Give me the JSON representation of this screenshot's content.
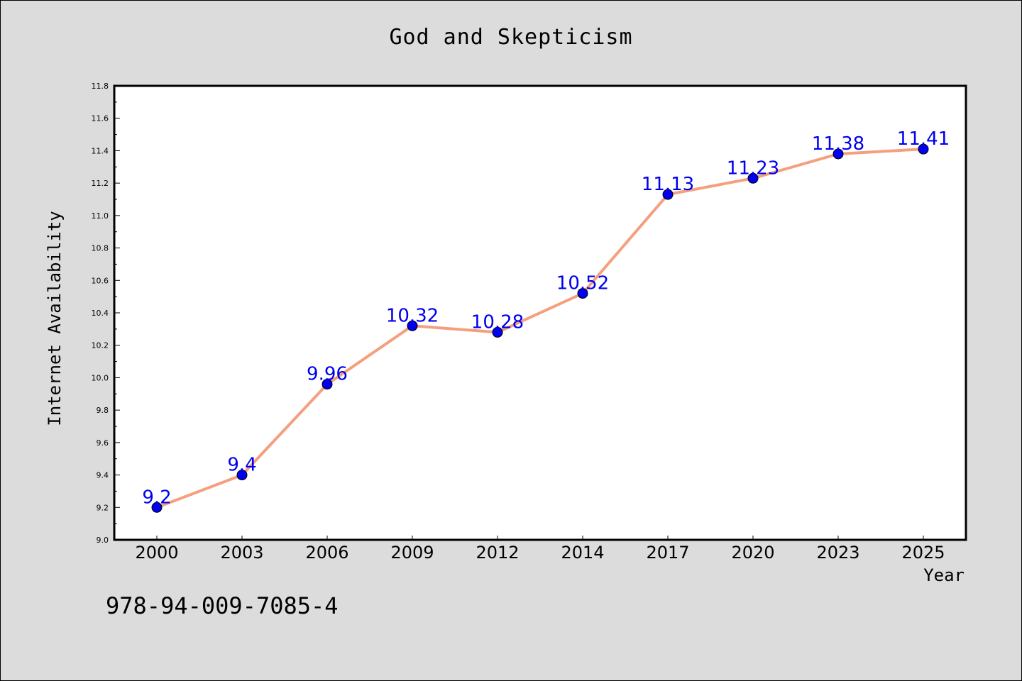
{
  "chart_data": {
    "type": "line",
    "title": "God and Skepticism",
    "xlabel": "Year",
    "ylabel": "Internet Availability",
    "categories": [
      "2000",
      "2003",
      "2006",
      "2009",
      "2012",
      "2014",
      "2017",
      "2020",
      "2023",
      "2025"
    ],
    "series": [
      {
        "values": [
          9.2,
          9.4,
          9.96,
          10.32,
          10.28,
          10.52,
          11.13,
          11.23,
          11.38,
          11.41
        ],
        "line_color": "#f4a07f",
        "marker_color": "#0000ee"
      }
    ],
    "data_labels": [
      "9.2",
      "9.4",
      "9.96",
      "10.32",
      "10.28",
      "10.52",
      "11.13",
      "11.23",
      "11.38",
      "11.41"
    ],
    "data_label_color": "#0000ee",
    "ylim": [
      9.0,
      11.8
    ],
    "yticks": [
      "9.0",
      "9.2",
      "9.4",
      "9.6",
      "9.8",
      "10.0",
      "10.2",
      "10.4",
      "10.6",
      "10.8",
      "11.0",
      "11.2",
      "11.4",
      "11.6",
      "11.8"
    ],
    "grid": false,
    "legend": "none"
  },
  "footer": {
    "code": "978-94-009-7085-4"
  },
  "colors": {
    "figure_background": "#dcdcdc",
    "plot_background": "#ffffff"
  }
}
